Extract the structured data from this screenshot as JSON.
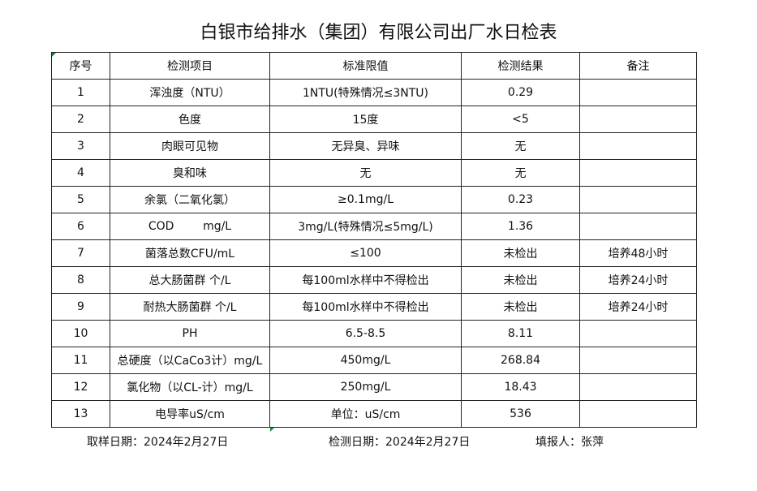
{
  "header": {
    "title": "白银市给排水（集团）有限公司出厂水日检表"
  },
  "table": {
    "header": [
      "序号",
      "检测项目",
      "标准限值",
      "检测结果",
      "备注"
    ],
    "rows": [
      {
        "no": "1",
        "item": "浑浊度（NTU）",
        "standard": "1NTU(特殊情况≤3NTU)",
        "result": "0.29"
      },
      {
        "no": "2",
        "item": "色度",
        "standard": "15度",
        "result": "<5"
      },
      {
        "no": "3",
        "item": "肉眼可见物",
        "standard": "无异臭、异味",
        "result": "无"
      },
      {
        "no": "4",
        "item": "臭和味",
        "standard": "无",
        "result": "无"
      },
      {
        "no": "5",
        "item": "余氯（二氧化氯）",
        "standard": "≥0.1mg/L",
        "result": "0.23"
      },
      {
        "no": "6",
        "item": "COD        mg/L",
        "standard": "3mg/L(特殊情况≤5mg/L)",
        "result": "1.36"
      },
      {
        "no": "7",
        "item": "菌落总数CFU/mL",
        "standard": "≤100",
        "result": "未检出",
        "remark": "培养48小时"
      },
      {
        "no": "8",
        "item": "总大肠菌群 个/L",
        "standard": "每100ml水样中不得检出",
        "result": "未检出",
        "remark": "培养24小时"
      },
      {
        "no": "9",
        "item": "耐热大肠菌群 个/L",
        "standard": "每100ml水样中不得检出",
        "result": "未检出",
        "remark": "培养24小时"
      },
      {
        "no": "10",
        "item": "PH",
        "standard": "6.5-8.5",
        "result": "8.11"
      },
      {
        "no": "11",
        "item": "总硬度（以CaCo3计）mg/L",
        "standard": "450mg/L",
        "result": "268.84"
      },
      {
        "no": "12",
        "item": "氯化物（以CL-计）mg/L",
        "standard": "250mg/L",
        "result": "18.43"
      },
      {
        "no": "13",
        "item": "电导率uS/cm",
        "standard": "单位：uS/cm",
        "result": "536"
      }
    ]
  },
  "footer": {
    "sampling_date": "取样日期：2024年2月27日",
    "test_date": "检测日期：2024年2月27日",
    "reporter": "填报人：张萍"
  }
}
